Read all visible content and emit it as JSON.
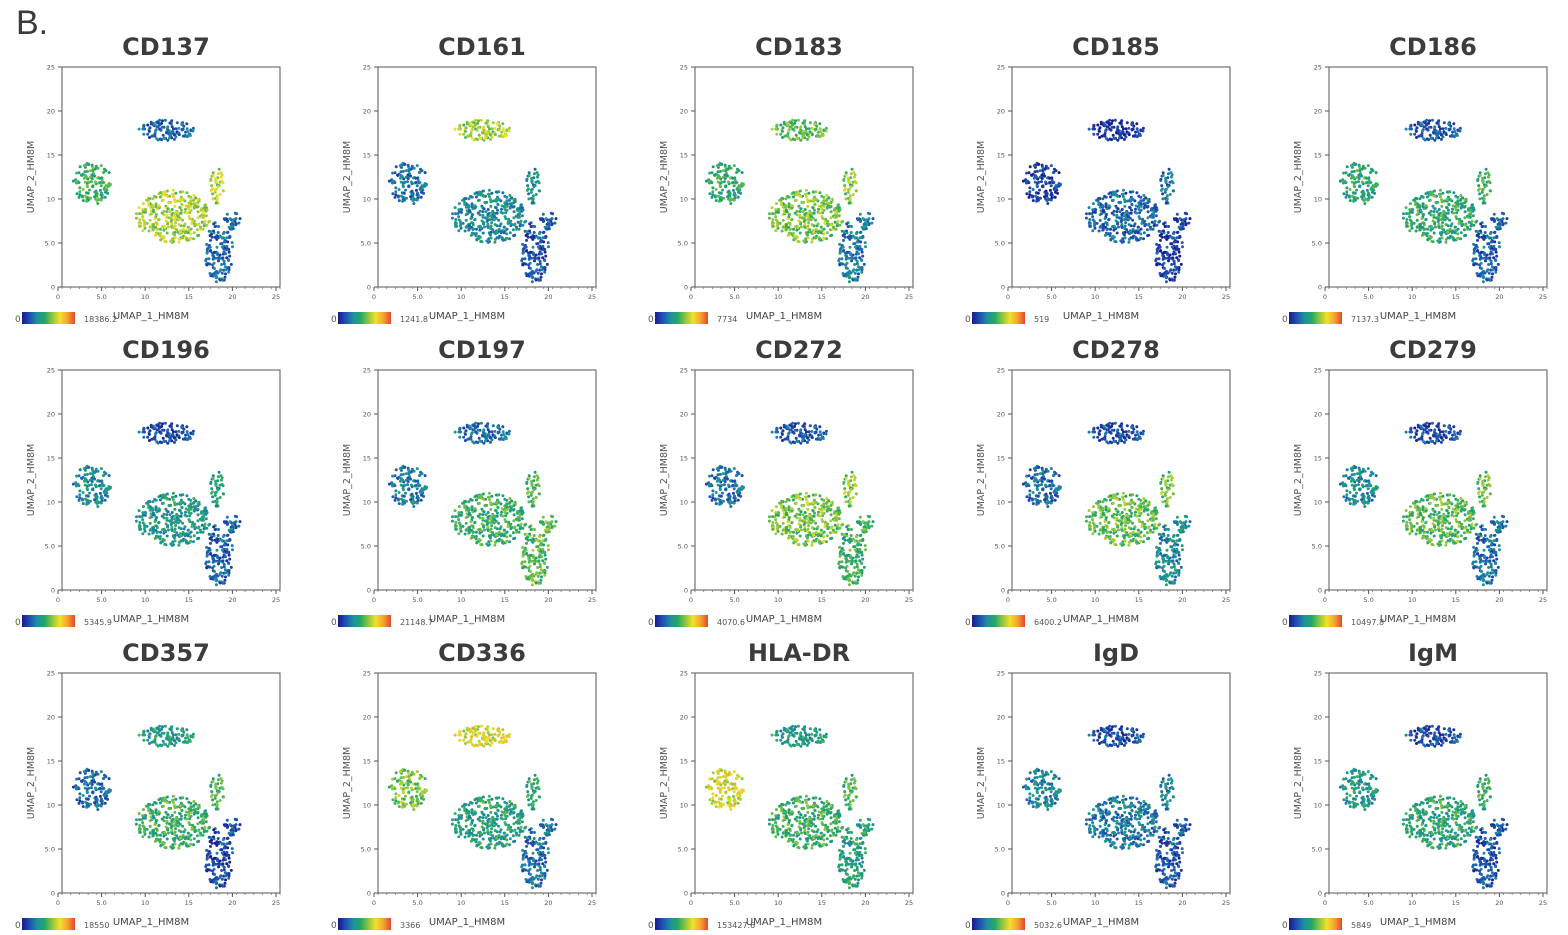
{
  "figure_label": "B.",
  "colors": {
    "colormap": [
      "#1a1a8c",
      "#1f4fb4",
      "#1e8fa0",
      "#22a866",
      "#8cc63f",
      "#f2e02b",
      "#f4a431",
      "#e8452c"
    ]
  },
  "chart_data": [
    {
      "type": "scatter",
      "title": "CD137",
      "xlabel": "UMAP_1_HM8M",
      "ylabel": "UMAP_2_HM8M",
      "xlim": [
        0,
        25
      ],
      "ylim": [
        0,
        25
      ],
      "xticks": [
        "0",
        "5.0",
        "10",
        "15",
        "20",
        "25"
      ],
      "yticks": [
        "0",
        "5.0",
        "10",
        "15",
        "20",
        "25"
      ],
      "colorbar": {
        "min": "0",
        "max": "18386.2"
      },
      "cluster_levels": {
        "left": 0.45,
        "top": 0.18,
        "center": 0.62,
        "right": 0.2
      }
    },
    {
      "type": "scatter",
      "title": "CD161",
      "xlabel": "UMAP_1_HM8M",
      "ylabel": "UMAP_2_HM8M",
      "xlim": [
        0,
        25
      ],
      "ylim": [
        0,
        25
      ],
      "xticks": [
        "0",
        "5.0",
        "10",
        "15",
        "20",
        "25"
      ],
      "yticks": [
        "0",
        "5.0",
        "10",
        "15",
        "20",
        "25"
      ],
      "colorbar": {
        "min": "0",
        "max": "1241.8"
      },
      "cluster_levels": {
        "left": 0.22,
        "top": 0.6,
        "center": 0.3,
        "right": 0.15
      }
    },
    {
      "type": "scatter",
      "title": "CD183",
      "xlabel": "UMAP_1_HM8M",
      "ylabel": "UMAP_2_HM8M",
      "xlim": [
        0,
        25
      ],
      "ylim": [
        0,
        25
      ],
      "xticks": [
        "0",
        "5.0",
        "10",
        "15",
        "20",
        "25"
      ],
      "yticks": [
        "0",
        "5.0",
        "10",
        "15",
        "20",
        "25"
      ],
      "colorbar": {
        "min": "0",
        "max": "7734"
      },
      "cluster_levels": {
        "left": 0.42,
        "top": 0.5,
        "center": 0.55,
        "right": 0.25
      }
    },
    {
      "type": "scatter",
      "title": "CD185",
      "xlabel": "UMAP_1_HM8M",
      "ylabel": "UMAP_2_HM8M",
      "xlim": [
        0,
        25
      ],
      "ylim": [
        0,
        25
      ],
      "xticks": [
        "0",
        "5.0",
        "10",
        "15",
        "20",
        "25"
      ],
      "yticks": [
        "0",
        "5.0",
        "10",
        "15",
        "20",
        "25"
      ],
      "colorbar": {
        "min": "0",
        "max": "519"
      },
      "cluster_levels": {
        "left": 0.1,
        "top": 0.06,
        "center": 0.2,
        "right": 0.1
      }
    },
    {
      "type": "scatter",
      "title": "CD186",
      "xlabel": "UMAP_1_HM8M",
      "ylabel": "UMAP_2_HM8M",
      "xlim": [
        0,
        25
      ],
      "ylim": [
        0,
        25
      ],
      "xticks": [
        "0",
        "5.0",
        "10",
        "15",
        "20",
        "25"
      ],
      "yticks": [
        "0",
        "5.0",
        "10",
        "15",
        "20",
        "25"
      ],
      "colorbar": {
        "min": "0",
        "max": "7137.3"
      },
      "cluster_levels": {
        "left": 0.4,
        "top": 0.15,
        "center": 0.42,
        "right": 0.18
      }
    },
    {
      "type": "scatter",
      "title": "CD196",
      "xlabel": "UMAP_1_HM8M",
      "ylabel": "UMAP_2_HM8M",
      "xlim": [
        0,
        25
      ],
      "ylim": [
        0,
        25
      ],
      "xticks": [
        "0",
        "5.0",
        "10",
        "15",
        "20",
        "25"
      ],
      "yticks": [
        "0",
        "5.0",
        "10",
        "15",
        "20",
        "25"
      ],
      "colorbar": {
        "min": "0",
        "max": "5345.9"
      },
      "cluster_levels": {
        "left": 0.3,
        "top": 0.12,
        "center": 0.35,
        "right": 0.18
      }
    },
    {
      "type": "scatter",
      "title": "CD197",
      "xlabel": "UMAP_1_HM8M",
      "ylabel": "UMAP_2_HM8M",
      "xlim": [
        0,
        25
      ],
      "ylim": [
        0,
        25
      ],
      "xticks": [
        "0",
        "5.0",
        "10",
        "15",
        "20",
        "25"
      ],
      "yticks": [
        "0",
        "5.0",
        "10",
        "15",
        "20",
        "25"
      ],
      "colorbar": {
        "min": "0",
        "max": "21148.7"
      },
      "cluster_levels": {
        "left": 0.25,
        "top": 0.2,
        "center": 0.45,
        "right": 0.5
      }
    },
    {
      "type": "scatter",
      "title": "CD272",
      "xlabel": "UMAP_1_HM8M",
      "ylabel": "UMAP_2_HM8M",
      "xlim": [
        0,
        25
      ],
      "ylim": [
        0,
        25
      ],
      "xticks": [
        "0",
        "5.0",
        "10",
        "15",
        "20",
        "25"
      ],
      "yticks": [
        "0",
        "5.0",
        "10",
        "15",
        "20",
        "25"
      ],
      "colorbar": {
        "min": "0",
        "max": "4070.6"
      },
      "cluster_levels": {
        "left": 0.22,
        "top": 0.15,
        "center": 0.55,
        "right": 0.45
      }
    },
    {
      "type": "scatter",
      "title": "CD278",
      "xlabel": "UMAP_1_HM8M",
      "ylabel": "UMAP_2_HM8M",
      "xlim": [
        0,
        25
      ],
      "ylim": [
        0,
        25
      ],
      "xticks": [
        "0",
        "5.0",
        "10",
        "15",
        "20",
        "25"
      ],
      "yticks": [
        "0",
        "5.0",
        "10",
        "15",
        "20",
        "25"
      ],
      "colorbar": {
        "min": "0",
        "max": "6400.2"
      },
      "cluster_levels": {
        "left": 0.2,
        "top": 0.12,
        "center": 0.52,
        "right": 0.3
      }
    },
    {
      "type": "scatter",
      "title": "CD279",
      "xlabel": "UMAP_1_HM8M",
      "ylabel": "UMAP_2_HM8M",
      "xlim": [
        0,
        25
      ],
      "ylim": [
        0,
        25
      ],
      "xticks": [
        "0",
        "5.0",
        "10",
        "15",
        "20",
        "25"
      ],
      "yticks": [
        "0",
        "5.0",
        "10",
        "15",
        "20",
        "25"
      ],
      "colorbar": {
        "min": "0",
        "max": "10497.8"
      },
      "cluster_levels": {
        "left": 0.3,
        "top": 0.12,
        "center": 0.5,
        "right": 0.22
      }
    },
    {
      "type": "scatter",
      "title": "CD357",
      "xlabel": "UMAP_1_HM8M",
      "ylabel": "UMAP_2_HM8M",
      "xlim": [
        0,
        25
      ],
      "ylim": [
        0,
        25
      ],
      "xticks": [
        "0",
        "5.0",
        "10",
        "15",
        "20",
        "25"
      ],
      "yticks": [
        "0",
        "5.0",
        "10",
        "15",
        "20",
        "25"
      ],
      "colorbar": {
        "min": "0",
        "max": "18550"
      },
      "cluster_levels": {
        "left": 0.2,
        "top": 0.35,
        "center": 0.45,
        "right": 0.12
      }
    },
    {
      "type": "scatter",
      "title": "CD336",
      "xlabel": "UMAP_1_HM8M",
      "ylabel": "UMAP_2_HM8M",
      "xlim": [
        0,
        25
      ],
      "ylim": [
        0,
        25
      ],
      "xticks": [
        "0",
        "5.0",
        "10",
        "15",
        "20",
        "25"
      ],
      "yticks": [
        "0",
        "5.0",
        "10",
        "15",
        "20",
        "25"
      ],
      "colorbar": {
        "min": "0",
        "max": "3366"
      },
      "cluster_levels": {
        "left": 0.55,
        "top": 0.68,
        "center": 0.38,
        "right": 0.22
      }
    },
    {
      "type": "scatter",
      "title": "HLA-DR",
      "xlabel": "UMAP_1_HM8M",
      "ylabel": "UMAP_2_HM8M",
      "xlim": [
        0,
        25
      ],
      "ylim": [
        0,
        25
      ],
      "xticks": [
        "0",
        "5.0",
        "10",
        "15",
        "20",
        "25"
      ],
      "yticks": [
        "0",
        "5.0",
        "10",
        "15",
        "20",
        "25"
      ],
      "colorbar": {
        "min": "0",
        "max": "153427.6"
      },
      "cluster_levels": {
        "left": 0.68,
        "top": 0.35,
        "center": 0.45,
        "right": 0.38
      }
    },
    {
      "type": "scatter",
      "title": "IgD",
      "xlabel": "UMAP_1_HM8M",
      "ylabel": "UMAP_2_HM8M",
      "xlim": [
        0,
        25
      ],
      "ylim": [
        0,
        25
      ],
      "xticks": [
        "0",
        "5.0",
        "10",
        "15",
        "20",
        "25"
      ],
      "yticks": [
        "0",
        "5.0",
        "10",
        "15",
        "20",
        "25"
      ],
      "colorbar": {
        "min": "0",
        "max": "5032.6"
      },
      "cluster_levels": {
        "left": 0.28,
        "top": 0.12,
        "center": 0.25,
        "right": 0.15
      }
    },
    {
      "type": "scatter",
      "title": "IgM",
      "xlabel": "UMAP_1_HM8M",
      "ylabel": "UMAP_2_HM8M",
      "xlim": [
        0,
        25
      ],
      "ylim": [
        0,
        25
      ],
      "xticks": [
        "0",
        "5.0",
        "10",
        "15",
        "20",
        "25"
      ],
      "yticks": [
        "0",
        "5.0",
        "10",
        "15",
        "20",
        "25"
      ],
      "colorbar": {
        "min": "0",
        "max": "5849"
      },
      "cluster_levels": {
        "left": 0.35,
        "top": 0.12,
        "center": 0.4,
        "right": 0.15
      }
    }
  ]
}
